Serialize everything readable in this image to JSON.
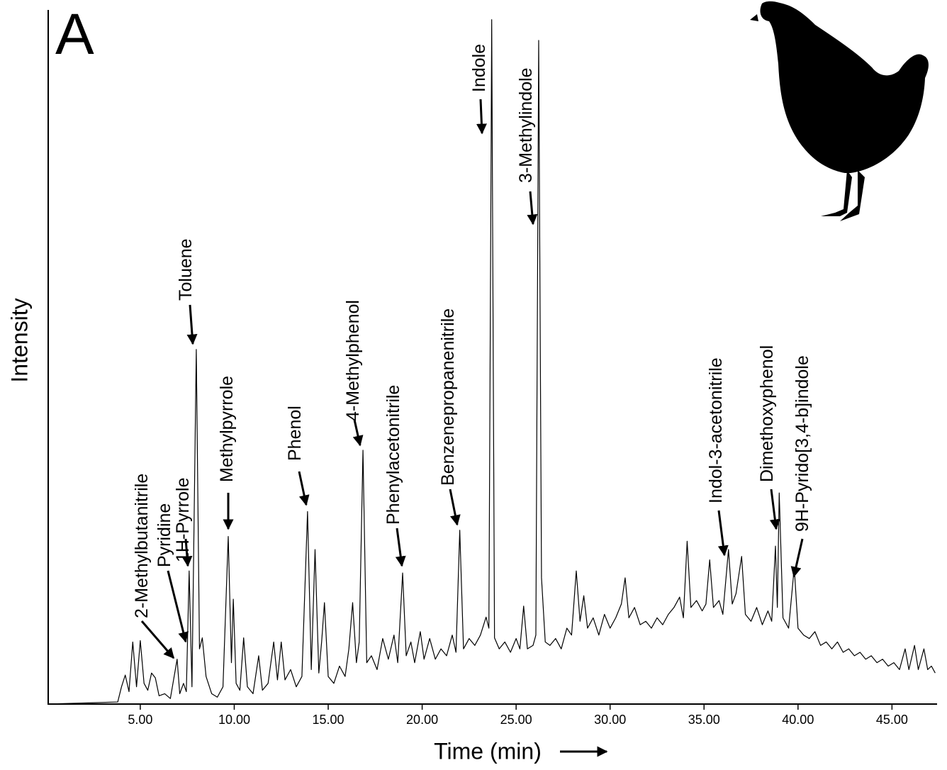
{
  "chart_data": {
    "type": "line",
    "panel_label": "A",
    "y_label": "Intensity",
    "x_label": "Time (min)",
    "color": "#000000",
    "xlim": [
      0.1,
      47.4
    ],
    "ylim": [
      0,
      100
    ],
    "xticks": [
      {
        "value": 5,
        "label": "5.00"
      },
      {
        "value": 10,
        "label": "10.00"
      },
      {
        "value": 15,
        "label": "15.00"
      },
      {
        "value": 20,
        "label": "20.00"
      },
      {
        "value": 25,
        "label": "25.00"
      },
      {
        "value": 30,
        "label": "30.00"
      },
      {
        "value": 35,
        "label": "35.00"
      },
      {
        "value": 40,
        "label": "40.00"
      },
      {
        "value": 45,
        "label": "45.00"
      }
    ],
    "annotations": [
      "2-Methylbutanitrile",
      "Pyridine",
      "1H-Pyrrole",
      "Toluene",
      "Methylpyrrole",
      "Phenol",
      "4-Methylphenol",
      "Phenylacetonitrile",
      "Benzenepropanenitrile",
      "Indole",
      "3-Methylindole",
      "Indol-3-acetonitrile",
      "Dimethoxyphenol",
      "9H-Pyrido[3,4-b]indole"
    ],
    "x": [
      0.1,
      3.8,
      4.0,
      4.2,
      4.4,
      4.6,
      4.8,
      5.0,
      5.2,
      5.4,
      5.6,
      5.8,
      6.0,
      6.3,
      6.6,
      6.96,
      7.1,
      7.3,
      7.45,
      7.6,
      7.75,
      7.98,
      8.15,
      8.3,
      8.5,
      8.8,
      9.1,
      9.4,
      9.68,
      9.85,
      9.95,
      10.1,
      10.3,
      10.5,
      10.7,
      11.0,
      11.3,
      11.5,
      11.8,
      12.1,
      12.3,
      12.5,
      12.7,
      13.0,
      13.3,
      13.6,
      13.9,
      14.1,
      14.3,
      14.5,
      14.65,
      14.8,
      15.0,
      15.3,
      15.6,
      15.9,
      16.1,
      16.3,
      16.5,
      16.65,
      16.85,
      17.05,
      17.3,
      17.6,
      17.9,
      18.2,
      18.5,
      18.7,
      18.96,
      19.15,
      19.4,
      19.6,
      19.9,
      20.1,
      20.4,
      20.7,
      21.0,
      21.3,
      21.6,
      21.8,
      22.0,
      22.2,
      22.5,
      22.8,
      23.1,
      23.4,
      23.55,
      23.7,
      23.85,
      24.1,
      24.4,
      24.7,
      25.0,
      25.2,
      25.4,
      25.6,
      25.9,
      26.05,
      26.2,
      26.35,
      26.55,
      26.8,
      27.1,
      27.4,
      27.7,
      27.95,
      28.2,
      28.4,
      28.6,
      28.8,
      29.1,
      29.4,
      29.7,
      30.0,
      30.3,
      30.6,
      30.8,
      31.0,
      31.3,
      31.6,
      31.9,
      32.2,
      32.5,
      32.8,
      33.1,
      33.4,
      33.7,
      33.9,
      34.1,
      34.3,
      34.6,
      34.9,
      35.1,
      35.3,
      35.5,
      35.8,
      36.0,
      36.3,
      36.5,
      36.7,
      37.0,
      37.2,
      37.5,
      37.8,
      38.1,
      38.4,
      38.6,
      38.8,
      38.9,
      39.0,
      39.2,
      39.5,
      39.8,
      40.0,
      40.3,
      40.6,
      40.9,
      41.2,
      41.5,
      41.8,
      42.1,
      42.4,
      42.7,
      43.0,
      43.3,
      43.6,
      43.9,
      44.2,
      44.5,
      44.8,
      45.1,
      45.4,
      45.7,
      45.9,
      46.2,
      46.4,
      46.7,
      46.9,
      47.1,
      47.3
    ],
    "values": [
      0,
      0.3,
      2.5,
      4.2,
      1.8,
      9.0,
      2.5,
      9.2,
      3.0,
      2.0,
      4.5,
      3.8,
      1.2,
      1.5,
      0.8,
      6.5,
      1.5,
      3.0,
      1.8,
      19.3,
      2.5,
      51.4,
      8.0,
      9.6,
      4.0,
      1.5,
      1.0,
      2.5,
      24.3,
      6.0,
      15.2,
      3.0,
      2.0,
      9.6,
      2.5,
      1.5,
      7.0,
      2.0,
      3.0,
      9.0,
      3.5,
      9.0,
      3.5,
      5.0,
      2.5,
      4.0,
      27.9,
      5.0,
      22.4,
      4.5,
      9.0,
      14.7,
      4.0,
      3.0,
      5.5,
      4.0,
      8.0,
      14.7,
      6.0,
      9.0,
      36.8,
      6.0,
      7.0,
      5.0,
      9.5,
      6.5,
      10.0,
      6.0,
      19.0,
      7.0,
      9.0,
      6.0,
      10.5,
      6.5,
      9.5,
      6.5,
      8.0,
      7.0,
      10.0,
      7.5,
      25.2,
      8.0,
      9.5,
      8.5,
      10.0,
      12.6,
      11.0,
      99.2,
      9.6,
      8.0,
      9.0,
      7.5,
      9.5,
      8.0,
      14.2,
      8.0,
      8.5,
      10.0,
      96.2,
      18.3,
      9.0,
      8.5,
      9.5,
      8.0,
      11.0,
      10.0,
      19.3,
      12.0,
      15.7,
      11.0,
      12.5,
      10.0,
      13.0,
      11.0,
      12.5,
      14.5,
      18.3,
      12.5,
      14.0,
      11.5,
      12.0,
      11.0,
      12.5,
      11.5,
      13.0,
      14.0,
      15.5,
      12.5,
      23.6,
      14.0,
      15.0,
      13.5,
      14.5,
      20.9,
      14.0,
      15.0,
      13.0,
      22.4,
      14.5,
      16.0,
      21.4,
      13.0,
      12.0,
      14.0,
      11.5,
      13.5,
      12.0,
      22.9,
      14.0,
      30.6,
      12.5,
      11.0,
      19.8,
      11.0,
      10.0,
      9.5,
      10.5,
      8.5,
      9.0,
      8.0,
      9.0,
      7.5,
      8.0,
      7.0,
      7.5,
      6.5,
      7.0,
      6.0,
      6.5,
      5.5,
      6.0,
      5.0,
      8.0,
      5.0,
      8.5,
      5.0,
      8.0,
      5.0,
      5.5,
      4.5
    ]
  }
}
